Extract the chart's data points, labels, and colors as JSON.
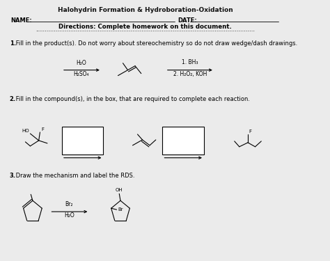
{
  "title": "Halohydrin Formation & Hydroboration-Oxidation",
  "name_label": "NAME:",
  "date_label": "DATE:",
  "directions": "Directions: Complete homework on this document.",
  "q1_bold": "1.",
  "q1_rest": " Fill in the product(s). Do not worry about stereochemistry so do not draw wedge/dash drawings.",
  "q2_bold": "2.",
  "q2_rest": " Fill in the compound(s), in the box, that are required to complete each reaction.",
  "q3_bold": "3.",
  "q3_rest": " Draw the mechanism and label the RDS.",
  "reagent1_line1": "H₂O",
  "reagent1_line2": "H₂SO₄",
  "reagent2_line1": "1. BH₃",
  "reagent2_line2": "2. H₂O₂, KOH",
  "reagent3_line1": "Br₂",
  "reagent3_line2": "H₂O",
  "ho_label": "HO",
  "f_label": "F",
  "oh_label": "OH",
  "br_label": "Br",
  "bg_color": "#ebebeb"
}
